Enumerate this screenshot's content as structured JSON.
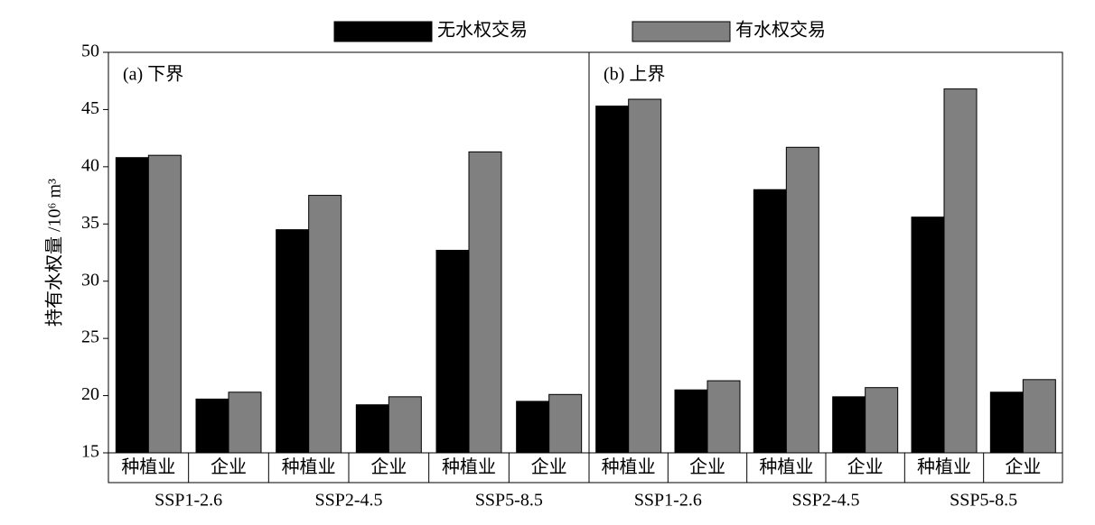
{
  "chart_data": [
    {
      "type": "bar",
      "title": "(a) 下界",
      "ylabel": "持有水权量 /10⁶ m³",
      "categories": [
        "种植业",
        "企业",
        "种植业",
        "企业",
        "种植业",
        "企业"
      ],
      "groups": [
        "SSP1-2.6",
        "SSP2-4.5",
        "SSP5-8.5"
      ],
      "series": [
        {
          "name": "无水权交易",
          "color": "#000000",
          "values": [
            40.8,
            19.7,
            34.5,
            19.2,
            32.7,
            19.5
          ]
        },
        {
          "name": "有水权交易",
          "color": "#808080",
          "values": [
            41.0,
            20.3,
            37.5,
            19.9,
            41.3,
            20.1
          ]
        }
      ],
      "ylim": [
        15,
        50
      ],
      "yticks": [
        15,
        20,
        25,
        30,
        35,
        40,
        45,
        50
      ]
    },
    {
      "type": "bar",
      "title": "(b) 上界",
      "categories": [
        "种植业",
        "企业",
        "种植业",
        "企业",
        "种植业",
        "企业"
      ],
      "groups": [
        "SSP1-2.6",
        "SSP2-4.5",
        "SSP5-8.5"
      ],
      "series": [
        {
          "name": "无水权交易",
          "color": "#000000",
          "values": [
            45.3,
            20.5,
            38.0,
            19.9,
            35.6,
            20.3
          ]
        },
        {
          "name": "有水权交易",
          "color": "#808080",
          "values": [
            45.9,
            21.3,
            41.7,
            20.7,
            46.8,
            21.4
          ]
        }
      ]
    }
  ]
}
